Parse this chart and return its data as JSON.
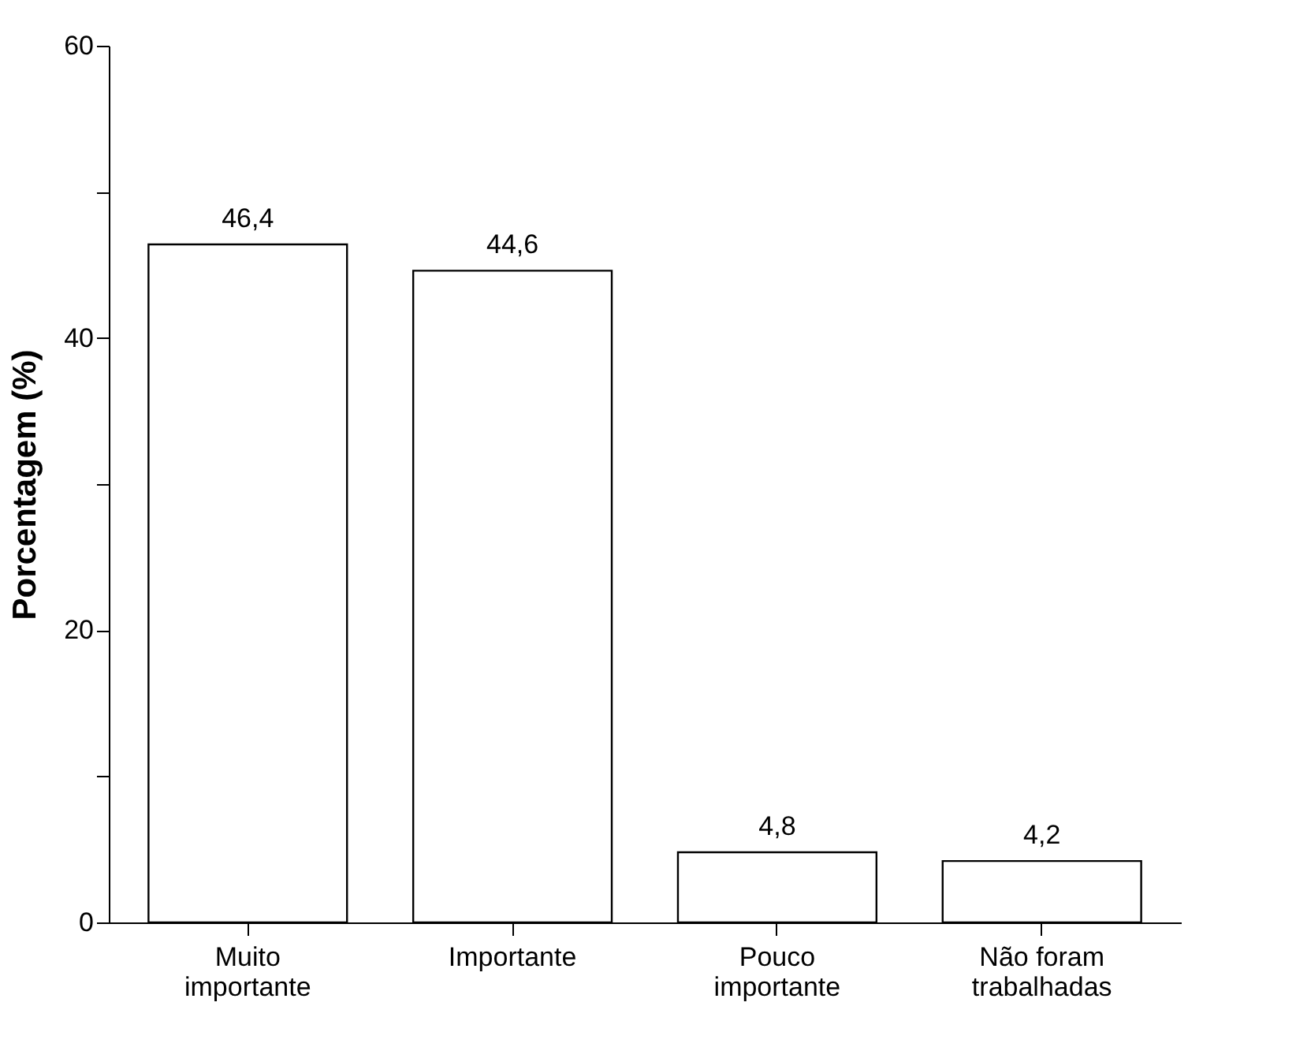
{
  "chart_data": {
    "type": "bar",
    "ylabel": "Porcentagem (%)",
    "categories": [
      "Muito importante",
      "Importante",
      "Pouco importante",
      "Não foram trabalhadas"
    ],
    "values": [
      46.4,
      44.6,
      4.8,
      4.2
    ],
    "value_labels": [
      "46,4",
      "44,6",
      "4,8",
      "4,2"
    ],
    "color": "#ffffff",
    "ylim": [
      0,
      60
    ],
    "yticks": [
      0,
      {
        "value": 10,
        "label": null
      },
      20,
      {
        "value": 30,
        "label": null
      },
      40,
      {
        "value": 50,
        "label": null
      },
      60
    ],
    "grid": false
  }
}
